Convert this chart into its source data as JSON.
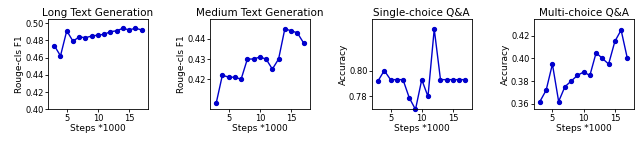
{
  "subplots": [
    {
      "title": "Long Text Generation",
      "ylabel": "Rouge-cls F1",
      "xlabel": "Steps *1000",
      "x": [
        3,
        4,
        5,
        6,
        7,
        8,
        9,
        10,
        11,
        12,
        13,
        14,
        15,
        16,
        17
      ],
      "y": [
        0.474,
        0.462,
        0.491,
        0.479,
        0.484,
        0.483,
        0.485,
        0.486,
        0.487,
        0.49,
        0.491,
        0.494,
        0.492,
        0.494,
        0.492
      ],
      "ylim": [
        0.4,
        0.505
      ],
      "yticks": [
        0.4,
        0.42,
        0.44,
        0.46,
        0.48,
        0.5
      ]
    },
    {
      "title": "Medium Text Generation",
      "ylabel": "Rouge-cls F1",
      "xlabel": "Steps *1000",
      "x": [
        3,
        4,
        5,
        6,
        7,
        8,
        9,
        10,
        11,
        12,
        13,
        14,
        15,
        16,
        17
      ],
      "y": [
        0.408,
        0.422,
        0.421,
        0.421,
        0.42,
        0.43,
        0.43,
        0.431,
        0.43,
        0.425,
        0.43,
        0.445,
        0.444,
        0.443,
        0.438
      ],
      "ylim": [
        0.405,
        0.45
      ],
      "yticks": [
        0.42,
        0.43,
        0.44
      ]
    },
    {
      "title": "Single-choice Q&A",
      "ylabel": "Accuracy",
      "xlabel": "Steps *1000",
      "x": [
        3,
        4,
        5,
        6,
        7,
        8,
        9,
        10,
        11,
        12,
        13,
        14,
        15,
        16,
        17
      ],
      "y": [
        0.792,
        0.8,
        0.793,
        0.793,
        0.793,
        0.779,
        0.77,
        0.793,
        0.78,
        0.832,
        0.793,
        0.793,
        0.793,
        0.793,
        0.793
      ],
      "ylim": [
        0.77,
        0.84
      ],
      "yticks": [
        0.78,
        0.8
      ]
    },
    {
      "title": "Multi-choice Q&A",
      "ylabel": "Accuracy",
      "xlabel": "Steps *1000",
      "x": [
        3,
        4,
        5,
        6,
        7,
        8,
        9,
        10,
        11,
        12,
        13,
        14,
        15,
        16,
        17
      ],
      "y": [
        0.362,
        0.372,
        0.395,
        0.362,
        0.375,
        0.38,
        0.385,
        0.388,
        0.385,
        0.405,
        0.4,
        0.395,
        0.415,
        0.425,
        0.4
      ],
      "ylim": [
        0.355,
        0.435
      ],
      "yticks": [
        0.36,
        0.38,
        0.4,
        0.42
      ]
    }
  ],
  "line_color": "#0000cc",
  "marker": "o",
  "markersize": 2.8,
  "linewidth": 1.0,
  "xticks": [
    5,
    10,
    15
  ],
  "title_fontsize": 7.5,
  "label_fontsize": 6.5,
  "tick_fontsize": 6.0
}
